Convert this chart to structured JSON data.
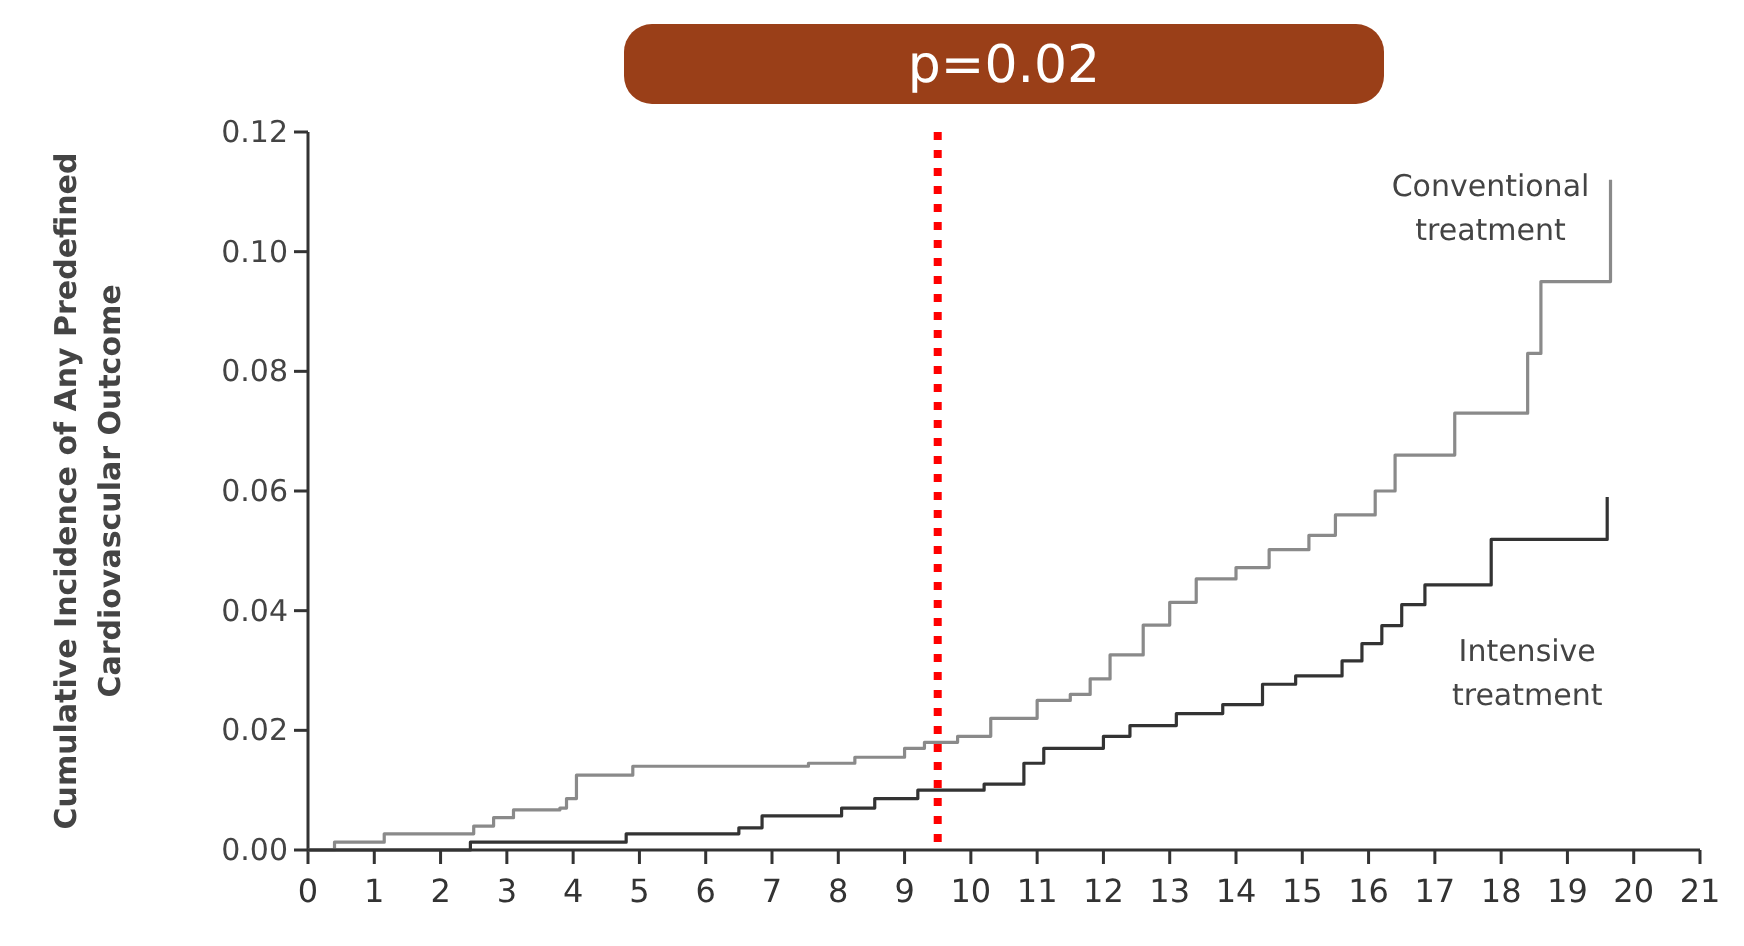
{
  "chart_data": {
    "type": "step",
    "ylabel": "Cumulative Incidence of Any Predefined\nCardiovascular Outcome",
    "xlim": [
      0,
      21
    ],
    "xticks": [
      0,
      1,
      2,
      3,
      4,
      5,
      6,
      7,
      8,
      9,
      10,
      11,
      12,
      13,
      14,
      15,
      16,
      17,
      18,
      19,
      20,
      21
    ],
    "ylim": [
      0,
      0.12
    ],
    "yticks": [
      {
        "value": 0,
        "label": "0.00"
      },
      {
        "value": 0.02,
        "label": "0.02"
      },
      {
        "value": 0.04,
        "label": "0.04"
      },
      {
        "value": 0.06,
        "label": "0.06"
      },
      {
        "value": 0.08,
        "label": "0.08"
      },
      {
        "value": 0.1,
        "label": "0.10"
      },
      {
        "value": 0.12,
        "label": "0.12"
      }
    ],
    "grid": false,
    "marker": "none",
    "line_style": "solid",
    "annotations": [
      "p=0.02"
    ],
    "ref_lines": [
      {
        "axis": "x",
        "value": 9.5,
        "color": "#ff0000",
        "line_style": "dotted"
      }
    ],
    "series": [
      {
        "name": "Conventional treatment",
        "color": "#8a8a8a",
        "x": [
          0,
          0.4,
          1.15,
          2.5,
          2.8,
          3.1,
          3.8,
          3.9,
          4.05,
          4.9,
          7.55,
          8.25,
          9.0,
          9.3,
          9.8,
          10.3,
          11.0,
          11.5,
          11.8,
          12.1,
          12.6,
          13.0,
          13.4,
          14.0,
          14.5,
          15.1,
          15.5,
          16.1,
          16.4,
          17.3,
          18.4,
          18.6,
          19.65
        ],
        "values": [
          0,
          0.0013,
          0.0027,
          0.004,
          0.0054,
          0.0067,
          0.007,
          0.0086,
          0.0125,
          0.014,
          0.0145,
          0.0155,
          0.017,
          0.018,
          0.019,
          0.022,
          0.025,
          0.026,
          0.0286,
          0.0326,
          0.0376,
          0.0414,
          0.0453,
          0.0472,
          0.0502,
          0.0526,
          0.056,
          0.06,
          0.066,
          0.073,
          0.083,
          0.095,
          0.112
        ]
      },
      {
        "name": "Intensive treatment",
        "color": "#333333",
        "x": [
          0,
          2.45,
          4.8,
          6.5,
          6.85,
          8.05,
          8.55,
          9.2,
          10.2,
          10.8,
          11.1,
          12.0,
          12.4,
          13.1,
          13.8,
          14.4,
          14.9,
          15.6,
          15.9,
          16.2,
          16.5,
          16.85,
          17.85,
          19.6
        ],
        "values": [
          0,
          0.0013,
          0.0027,
          0.0037,
          0.0057,
          0.007,
          0.0086,
          0.01,
          0.011,
          0.0145,
          0.017,
          0.019,
          0.0208,
          0.0228,
          0.0243,
          0.0277,
          0.0291,
          0.0316,
          0.0345,
          0.0375,
          0.041,
          0.0443,
          0.0519,
          0.059
        ]
      }
    ]
  }
}
